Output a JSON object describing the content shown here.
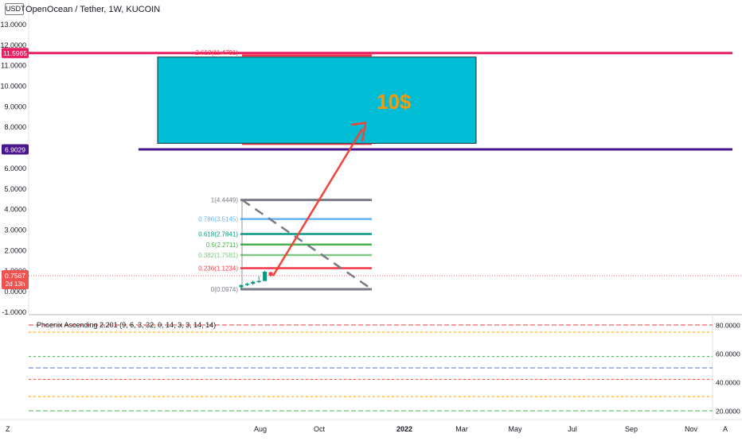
{
  "header": {
    "quote_currency": "USDT",
    "title": "OpenOcean / Tether, 1W, KUCOIN"
  },
  "price_scale": {
    "ticks": [
      "13.0000",
      "12.0000",
      "11.0000",
      "10.0000",
      "9.0000",
      "8.0000",
      "7.0000",
      "6.0000",
      "5.0000",
      "4.0000",
      "3.0000",
      "2.0000",
      "1.0000",
      "0.0000",
      "-1.0000"
    ],
    "markers": [
      {
        "value": 11.5965,
        "label": "11.5965",
        "color": "#e91e63"
      },
      {
        "value": 6.9029,
        "label": "6.9029",
        "color": "#4a148c"
      }
    ],
    "last_price": {
      "value": 0.7567,
      "label": "0.7567",
      "countdown": "2d 13h",
      "color": "#ef5350"
    }
  },
  "time_axis": {
    "labels": [
      "Aug",
      "Oct",
      "2022",
      "Mar",
      "May",
      "Jul",
      "Sep",
      "Nov"
    ],
    "bold_label": "2022"
  },
  "chart_data": {
    "type": "candlestick",
    "title": "OpenOcean / Tether, 1W, KUCOIN",
    "ylim": [
      -1.2,
      13.6
    ],
    "candles": [
      {
        "open": 0.2,
        "high": 0.32,
        "low": 0.12,
        "close": 0.3
      },
      {
        "open": 0.3,
        "high": 0.42,
        "low": 0.26,
        "close": 0.36
      },
      {
        "open": 0.36,
        "high": 0.52,
        "low": 0.3,
        "close": 0.46
      },
      {
        "open": 0.46,
        "high": 0.72,
        "low": 0.4,
        "close": 0.5
      },
      {
        "open": 0.5,
        "high": 1.0,
        "low": 0.48,
        "close": 0.95
      },
      {
        "open": 0.92,
        "high": 0.96,
        "low": 0.7,
        "close": 0.76
      }
    ],
    "fibonacci": {
      "levels": [
        {
          "ratio": "0",
          "price": "0.0974",
          "value": 0.0974,
          "color": "#787b86"
        },
        {
          "ratio": "0.236",
          "price": "1.1234",
          "value": 1.1234,
          "color": "#f23645"
        },
        {
          "ratio": "0.382",
          "price": "1.7581",
          "value": 1.7581,
          "color": "#81c784"
        },
        {
          "ratio": "0.5",
          "price": "2.2711",
          "value": 2.2711,
          "color": "#4caf50"
        },
        {
          "ratio": "0.618",
          "price": "2.7841",
          "value": 2.7841,
          "color": "#089981"
        },
        {
          "ratio": "0.786",
          "price": "3.5145",
          "value": 3.5145,
          "color": "#64b5f6"
        },
        {
          "ratio": "1",
          "price": "4.4449",
          "value": 4.4449,
          "color": "#787b86"
        },
        {
          "ratio": "2.618",
          "price": "11.4791",
          "value": 11.4791,
          "color": "#f23645"
        }
      ]
    },
    "horizontal_lines": [
      {
        "value": 11.5965,
        "color": "#e91e63"
      },
      {
        "value": 6.9029,
        "color": "#4a148c"
      }
    ],
    "target_box": {
      "top": 11.4,
      "bottom": 7.2,
      "color": "#00bcd4"
    },
    "target_label": {
      "text": "10$",
      "color": "#ff9800"
    }
  },
  "indicator": {
    "name": "Phoenix Ascending 2.201 (9, 6, 3, 32, 0, 14, 3, 3, 14, 14)",
    "scale_labels": [
      "80.0000",
      "60.0000",
      "40.0000",
      "20.0000"
    ],
    "lines": [
      {
        "value": 80,
        "color": "#e53935",
        "dash": "6,3"
      },
      {
        "value": 75,
        "color": "#ff9800",
        "dash": "3,3"
      },
      {
        "value": 58,
        "color": "#4caf50",
        "dash": "3,3"
      },
      {
        "value": 50,
        "color": "#5c6bc0",
        "dash": "6,3"
      },
      {
        "value": 42,
        "color": "#f44336",
        "dash": "3,3"
      },
      {
        "value": 30,
        "color": "#ff9800",
        "dash": "3,3"
      },
      {
        "value": 20,
        "color": "#4caf50",
        "dash": "6,3"
      }
    ]
  },
  "bottom_bar": {
    "left_glyph": "Z",
    "right_glyph": "A"
  }
}
